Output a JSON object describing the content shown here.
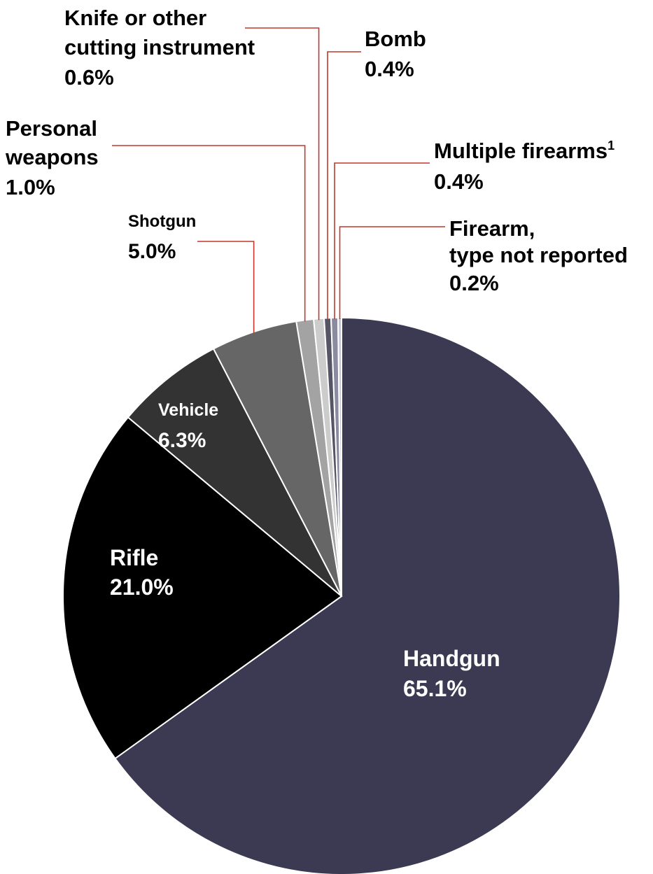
{
  "chart_data": {
    "type": "pie",
    "slices": [
      {
        "label": "Handgun",
        "value": 65.1,
        "value_label": "65.1%",
        "color": "#3b3a52"
      },
      {
        "label": "Rifle",
        "value": 21.0,
        "value_label": "21.0%",
        "color": "#000000"
      },
      {
        "label": "Vehicle",
        "value": 6.3,
        "value_label": "6.3%",
        "color": "#333333"
      },
      {
        "label": "Shotgun",
        "value": 5.0,
        "value_label": "5.0%",
        "color": "#666666"
      },
      {
        "label": "Personal weapons",
        "value": 1.0,
        "value_label": "1.0%",
        "color": "#a3a3a3"
      },
      {
        "label": "Knife or other cutting instrument",
        "value": 0.6,
        "value_label": "0.6%",
        "color": "#cccccc"
      },
      {
        "label": "Bomb",
        "value": 0.4,
        "value_label": "0.4%",
        "color": "#555566"
      },
      {
        "label": "Multiple firearms",
        "label_sup": "1",
        "value": 0.4,
        "value_label": "0.4%",
        "color": "#8a8aa0"
      },
      {
        "label": "Firearm, type not reported",
        "value": 0.2,
        "value_label": "0.2%",
        "color": "#c4c4d4"
      }
    ],
    "label_lines": [
      {
        "label": "Knife or other",
        "label2": "cutting instrument"
      },
      {
        "label": "Personal",
        "label2": "weapons"
      },
      {
        "label": "Firearm,",
        "label2": "type not reported"
      }
    ],
    "leader_color": "#c0392b",
    "start_angle": "12 o'clock",
    "direction": "clockwise"
  }
}
